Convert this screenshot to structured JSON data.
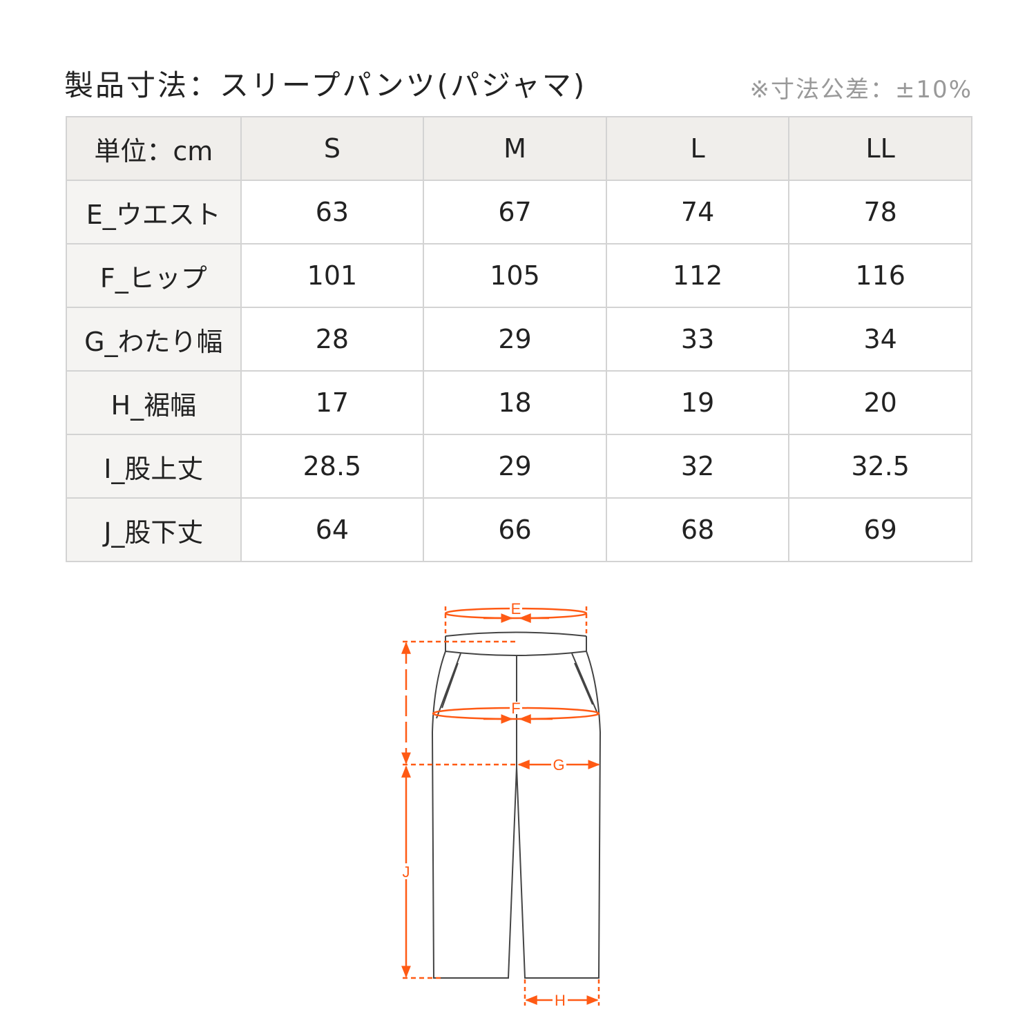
{
  "title": "製品寸法：スリープパンツ(パジャマ)",
  "tolerance": "※寸法公差：±10%",
  "table": {
    "headers": [
      "単位：cm",
      "S",
      "M",
      "L",
      "LL"
    ],
    "rows": [
      {
        "label": "E_ウエスト",
        "values": [
          "63",
          "67",
          "74",
          "78"
        ]
      },
      {
        "label": "F_ヒップ",
        "values": [
          "101",
          "105",
          "112",
          "116"
        ]
      },
      {
        "label": "G_わたり幅",
        "values": [
          "28",
          "29",
          "33",
          "34"
        ]
      },
      {
        "label": "H_裾幅",
        "values": [
          "17",
          "18",
          "19",
          "20"
        ]
      },
      {
        "label": "I_股上丈",
        "values": [
          "28.5",
          "29",
          "32",
          "32.5"
        ]
      },
      {
        "label": "J_股下丈",
        "values": [
          "64",
          "66",
          "68",
          "69"
        ]
      }
    ]
  },
  "diagram": {
    "labels": {
      "E": "E",
      "F": "F",
      "G": "G",
      "H": "H",
      "J": "J"
    },
    "accent_color": "#ff5a14",
    "outline_color": "#444444"
  }
}
